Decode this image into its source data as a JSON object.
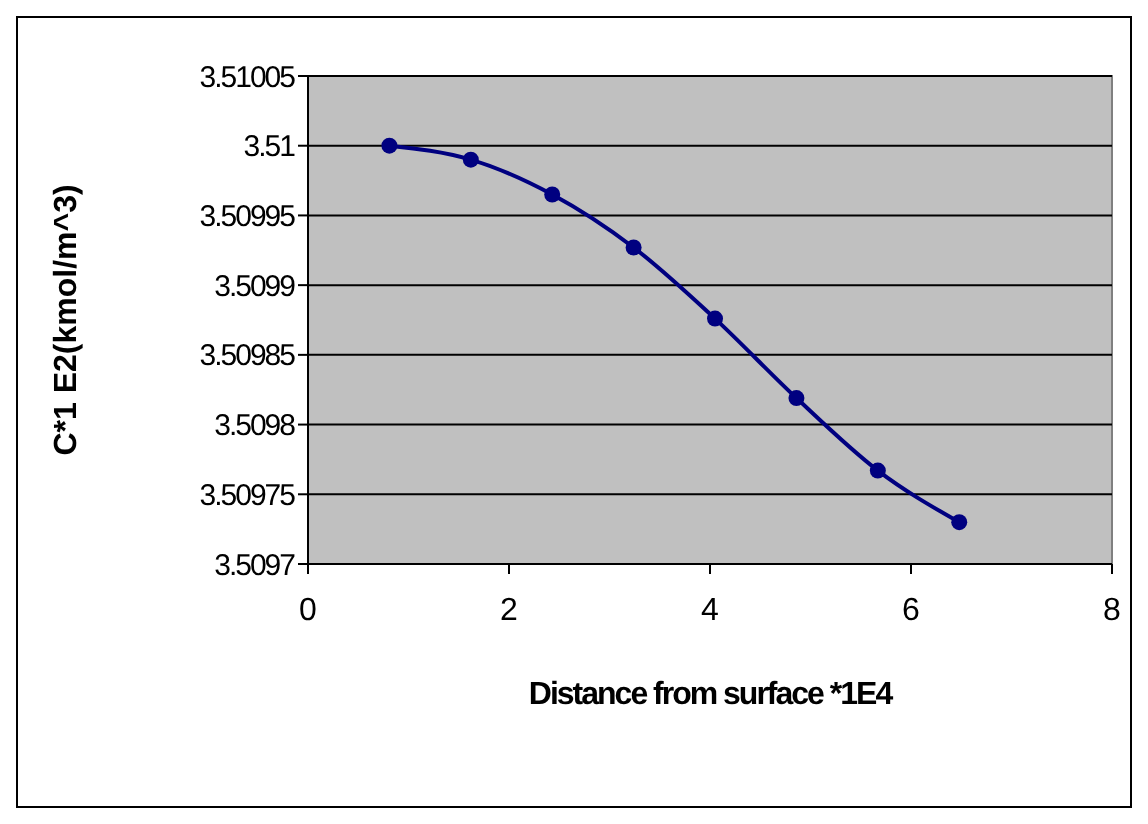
{
  "chart_data": {
    "type": "line",
    "xlabel": "Distance from surface *1E4",
    "ylabel": "C*1 E2(kmol/m^3)",
    "x": [
      0.81,
      1.62,
      2.43,
      3.24,
      4.05,
      4.86,
      5.67,
      6.48
    ],
    "series": [
      {
        "color": "#000080",
        "values": [
          3.51,
          3.50999,
          3.509965,
          3.509927,
          3.509876,
          3.509819,
          3.509767,
          3.50973
        ]
      }
    ],
    "xlim": [
      0,
      8
    ],
    "xticks": [
      0,
      2,
      4,
      6,
      8
    ],
    "ylim": [
      3.5097,
      3.51005
    ],
    "yticks": [
      3.5097,
      3.50975,
      3.5098,
      3.50985,
      3.5099,
      3.50995,
      3.51,
      3.51005
    ],
    "grid": "y",
    "marker": "circle",
    "line_style": "solid"
  }
}
